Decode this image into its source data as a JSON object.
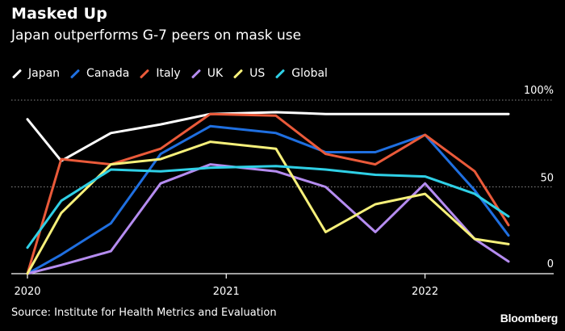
{
  "header": {
    "title": "Masked Up",
    "subtitle": "Japan outperforms G-7 peers on mask use"
  },
  "footer": {
    "source": "Source: Institute for Health Metrics and Evaluation",
    "brand": "Bloomberg"
  },
  "chart_data": {
    "type": "line",
    "title": "Masked Up",
    "subtitle": "Japan outperforms G-7 peers on mask use",
    "xlabel": "",
    "ylabel": "",
    "x": [
      2020.0,
      2020.17,
      2020.42,
      2020.67,
      2020.92,
      2021.25,
      2021.5,
      2021.75,
      2022.0,
      2022.25,
      2022.42
    ],
    "xlim": [
      2020.0,
      2022.42
    ],
    "ylim": [
      0,
      100
    ],
    "x_ticks": [
      2020,
      2021,
      2022
    ],
    "y_ticks": [
      0,
      50,
      100
    ],
    "y_tick_labels": [
      "0",
      "50",
      "100%"
    ],
    "grid": "horizontal dotted",
    "legend_position": "top-left",
    "series": [
      {
        "name": "Japan",
        "color": "#ffffff",
        "values": [
          89,
          65,
          81,
          86,
          92,
          93,
          92,
          92,
          92,
          92,
          92
        ]
      },
      {
        "name": "Canada",
        "color": "#1f6fe0",
        "values": [
          0,
          11,
          29,
          69,
          85,
          81,
          70,
          70,
          80,
          48,
          22
        ]
      },
      {
        "name": "Italy",
        "color": "#ea5a3a",
        "values": [
          0,
          66,
          63,
          72,
          92,
          91,
          69,
          63,
          80,
          59,
          28
        ]
      },
      {
        "name": "UK",
        "color": "#b58cf0",
        "values": [
          0,
          5,
          13,
          52,
          63,
          59,
          50,
          24,
          52,
          20,
          7
        ]
      },
      {
        "name": "US",
        "color": "#f6f07a",
        "values": [
          0,
          35,
          63,
          66,
          76,
          72,
          24,
          40,
          46,
          20,
          17
        ]
      },
      {
        "name": "Global",
        "color": "#2fd0e6",
        "values": [
          15,
          42,
          60,
          59,
          61,
          62,
          60,
          57,
          56,
          46,
          33
        ]
      }
    ]
  }
}
